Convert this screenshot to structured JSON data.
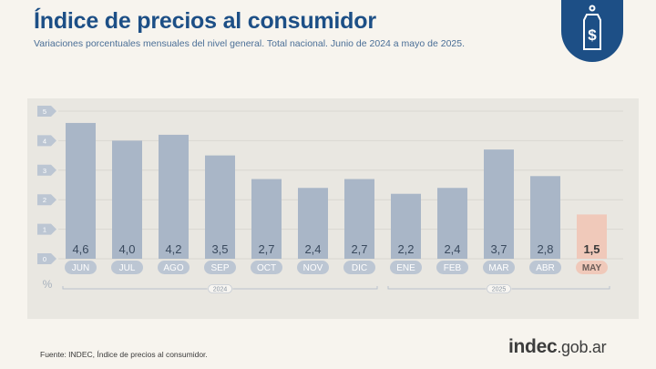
{
  "header": {
    "title": "Índice de precios al consumidor",
    "subtitle": "Variaciones porcentuales mensuales del nivel general. Total nacional. Junio de 2024 a mayo de 2025."
  },
  "footer": {
    "source": "Fuente: INDEC, Índice de precios al consumidor.",
    "logo_main": "indec",
    "logo_domain": ".gob.ar"
  },
  "badge": {
    "icon": "price-tag-dollar-icon"
  },
  "chart_data": {
    "type": "bar",
    "categories": [
      "JUN",
      "JUL",
      "AGO",
      "SEP",
      "OCT",
      "NOV",
      "DIC",
      "ENE",
      "FEB",
      "MAR",
      "ABR",
      "MAY"
    ],
    "values": [
      4.6,
      4.0,
      4.2,
      3.5,
      2.7,
      2.4,
      2.7,
      2.2,
      2.4,
      3.7,
      2.8,
      1.5
    ],
    "value_labels": [
      "4,6",
      "4,0",
      "4,2",
      "3,5",
      "2,7",
      "2,4",
      "2,7",
      "2,2",
      "2,4",
      "3,7",
      "2,8",
      "1,5"
    ],
    "yticks": [
      "0",
      "1",
      "2",
      "3",
      "4",
      "5"
    ],
    "ylim": [
      0,
      5
    ],
    "ylabel": "%",
    "highlight_index": 11,
    "year_groups": [
      {
        "label": "2024",
        "from": 0,
        "to": 6
      },
      {
        "label": "2025",
        "from": 7,
        "to": 11
      }
    ],
    "grid": true,
    "colors": {
      "bar": "#a9b6c7",
      "bar_highlight": "#f0c9ba",
      "tick_badge": "#bcc6d3",
      "gridline": "#d9d7d1",
      "value_text": "#3a4a5e",
      "highlight_text": "#3a3a3a",
      "category_text": "#ffffff",
      "category_highlight_text": "#6b5d58"
    }
  }
}
